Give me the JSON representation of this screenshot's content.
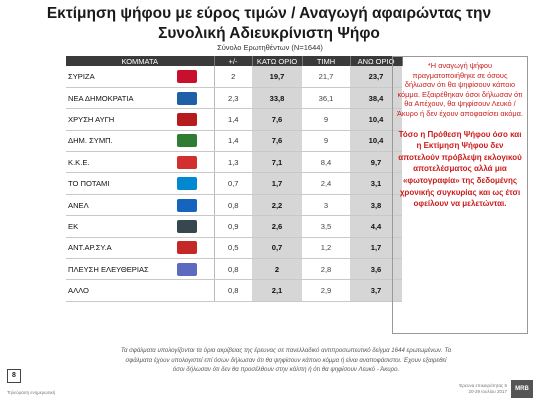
{
  "title_line1": "Εκτίμηση ψήφου με εύρος τιμών / Αναγωγή αφαιρώντας την",
  "title_line2": "Συνολική Αδιευκρίνιστη Ψήφο",
  "respondents": "Σύνολο Ερωτηθέντων (N=1644)",
  "columns": [
    "ΚΟΜΜΑΤΑ",
    "+/-",
    "ΚΑΤΩ ΟΡΙΟ",
    "ΤΙΜΗ",
    "ΑΝΩ ΟΡΙΟ"
  ],
  "rows": [
    {
      "party": "ΣΥΡΙΖΑ",
      "logo": "syriza-logo",
      "color": "#c8102e",
      "pm": "2",
      "low": "19,7",
      "val": "21,7",
      "high": "23,7"
    },
    {
      "party": "ΝΕΑ ΔΗΜΟΚΡΑΤΙΑ",
      "logo": "nd-logo",
      "color": "#1f5fa8",
      "pm": "2,3",
      "low": "33,8",
      "val": "36,1",
      "high": "38,4"
    },
    {
      "party": "ΧΡΥΣΗ ΑΥΓΗ",
      "logo": "xa-logo",
      "color": "#b71c1c",
      "pm": "1,4",
      "low": "7,6",
      "val": "9",
      "high": "10,4"
    },
    {
      "party": "ΔΗΜ. ΣΥΜΠ.",
      "logo": "dimsymp-logo",
      "color": "#2e7d32",
      "pm": "1,4",
      "low": "7,6",
      "val": "9",
      "high": "10,4"
    },
    {
      "party": "Κ.Κ.Ε.",
      "logo": "kke-logo",
      "color": "#d32f2f",
      "pm": "1,3",
      "low": "7,1",
      "val": "8,4",
      "high": "9,7"
    },
    {
      "party": "ΤΟ ΠΟΤΑΜΙ",
      "logo": "potami-logo",
      "color": "#0288d1",
      "pm": "0,7",
      "low": "1,7",
      "val": "2,4",
      "high": "3,1"
    },
    {
      "party": "ΑΝΕΛ",
      "logo": "anel-logo",
      "color": "#1565c0",
      "pm": "0,8",
      "low": "2,2",
      "val": "3",
      "high": "3,8"
    },
    {
      "party": "ΕΚ",
      "logo": "ek-logo",
      "color": "#37474f",
      "pm": "0,9",
      "low": "2,6",
      "val": "3,5",
      "high": "4,4"
    },
    {
      "party": "ΑΝΤ.ΑΡ.ΣΥ.Α",
      "logo": "antarsya-logo",
      "color": "#c62828",
      "pm": "0,5",
      "low": "0,7",
      "val": "1,2",
      "high": "1,7"
    },
    {
      "party": "ΠΛΕΥΣΗ ΕΛΕΥΘΕΡΙΑΣ",
      "logo": "plefsi-logo",
      "color": "#5c6bc0",
      "pm": "0,8",
      "low": "2",
      "val": "2,8",
      "high": "3,6"
    },
    {
      "party": "ΑΛΛΟ",
      "logo": "",
      "color": "",
      "pm": "0,8",
      "low": "2,1",
      "val": "2,9",
      "high": "3,7"
    }
  ],
  "logo_texts": {
    "kke": "ΚΚΕ",
    "ek": "ΕΝΩΣΗ ΚΕΝΤΡΩΩΝ",
    "antarsya": "ΑΝΤΑΡΣΥΑ",
    "potami": "ΠΟΤΑΜΙ",
    "anel": "ΑΝΕΞΑΡΤΗΤΟΙ"
  },
  "side_note": "*Η αναγωγή ψήφου πραγματοποιήθηκε σε όσους δήλωσαν ότι θα ψηφίσουν κάποιο κόμμα. Εξαιρέθηκαν όσοι δήλωσαν ότι θα Απέχουν, θα ψηφίσουν Λευκό / Άκυρο ή δεν έχουν αποφασίσει ακόμα.",
  "side_emphasis": "Τόσο η Πρόθεση Ψήφου όσο και η Εκτίμηση Ψήφου δεν αποτελούν πρόβλεψη εκλογικού αποτελέσματος αλλά μια «φωτογραφία» της δεδομένης χρονικής συγκυρίας και ως έτσι οφείλουν να μελετώνται.",
  "footnote_line1": "Τα σφάλματα υπολογίζονται τα όρια ακρίβειας της έρευνας σε πανελλαδικό αντιπροσωπευτικό δείγμα 1644 ερωτωμένων. Τα",
  "footnote_line2": "σφάλματα έχουν υπολογιστεί επί όσων δήλωσαν ότι θα ψηφίσουν κάποιο κόμμα ή είναι αναποφάσιστοι. Έχουν εξαιρεθεί",
  "footnote_line3": "όσοι δήλωσαν ότι δεν θα προσέλθουν στην κάλπη ή ότι θα ψηφίσουν Λευκό - Άκυρο.",
  "page_number": "8",
  "client_label": "Τηλεόραση ενημερωτική",
  "survey_label": "Έρευνα επικαιρότητας",
  "survey_date": "20-29 Ιουλίου 2017",
  "survey_page": "6",
  "brand": "MRB"
}
